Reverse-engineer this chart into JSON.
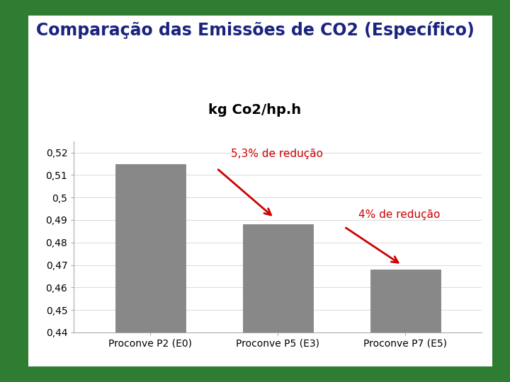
{
  "title": "Comparação das Emissões de CO2 (Específico)",
  "chart_title": "kg Co2/hp.h",
  "categories": [
    "Proconve P2 (E0)",
    "Proconve P5 (E3)",
    "Proconve P7 (E5)"
  ],
  "values": [
    0.515,
    0.488,
    0.468
  ],
  "bar_color": "#888888",
  "bar_edge_color": "#777777",
  "ylim_min": 0.44,
  "ylim_max": 0.525,
  "yticks": [
    0.44,
    0.45,
    0.46,
    0.47,
    0.48,
    0.49,
    0.5,
    0.51,
    0.52
  ],
  "ytick_labels": [
    "0,44",
    "0,45",
    "0,46",
    "0,47",
    "0,48",
    "0,49",
    "0,5",
    "0,51",
    "0,52"
  ],
  "annotation1_text": "5,3% de redução",
  "annotation2_text": "4% de redução",
  "annotation_color": "#cc0000",
  "title_color": "#1a237e",
  "title_fontsize": 17,
  "chart_title_fontsize": 14,
  "background_color": "#ffffff",
  "outer_bg_color": "#2e7d32"
}
